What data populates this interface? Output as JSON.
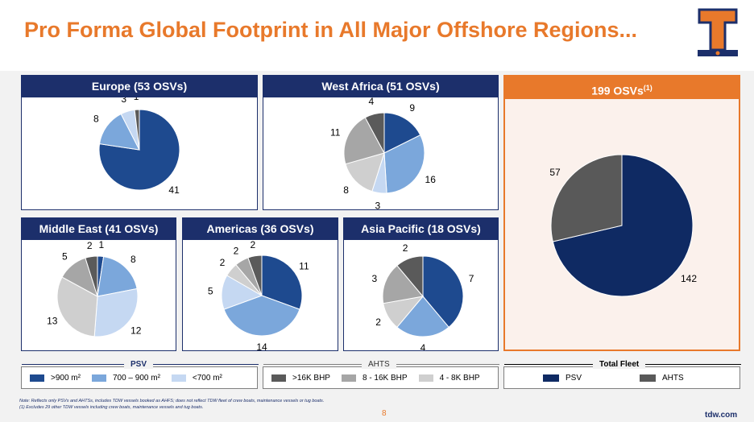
{
  "title": "Pro Forma Global Footprint in All Major Offshore Regions...",
  "colors": {
    "accent": "#e8792b",
    "navy": "#1c2f6b",
    "psv_gt900": "#1e4a8f",
    "psv_700_900": "#7ba7db",
    "psv_lt700": "#c5d8f2",
    "ahts_gt16k": "#5a5a5a",
    "ahts_8_16k": "#a6a6a6",
    "ahts_4_8k": "#cfcfcf",
    "fleet_psv": "#0f2a63",
    "fleet_ahts": "#595959"
  },
  "legend": {
    "psv": {
      "title": "PSV",
      "items": [
        ">900 m²",
        "700 – 900 m²",
        "<700 m²"
      ]
    },
    "ahts": {
      "title": "AHTS",
      "items": [
        ">16K BHP",
        "8 - 16K BHP",
        "4 - 8K BHP"
      ]
    },
    "total": {
      "title": "Total Fleet",
      "items": [
        "PSV",
        "AHTS"
      ]
    }
  },
  "total_header": "199 OSVs",
  "total_header_sup": "(1)",
  "notes": {
    "line1": "Note: Reflects only PSVs and AHTSs, includes TDW vessels booked as AHFS; does not reflect TDW fleet of crew boats, maintenance vessels or tug boats.",
    "line2": "(1)    Excludes 29 other TDW vessels including crew boats, maintenance vessels and tug boats."
  },
  "page_number": "8",
  "url": "tdw.com",
  "chart_data": [
    {
      "type": "pie",
      "title": "Europe (53 OSVs)",
      "series": [
        {
          "values": [
            41,
            8,
            3,
            1
          ],
          "labels": [
            "41",
            "8",
            "3",
            "1"
          ],
          "colors": [
            "#1e4a8f",
            "#7ba7db",
            "#c5d8f2",
            "#5a5a5a"
          ]
        }
      ]
    },
    {
      "type": "pie",
      "title": "West Africa (51 OSVs)",
      "series": [
        {
          "values": [
            9,
            16,
            3,
            8,
            11,
            4
          ],
          "labels": [
            "9",
            "16",
            "3",
            "8",
            "11",
            "4"
          ],
          "colors": [
            "#1e4a8f",
            "#7ba7db",
            "#c5d8f2",
            "#cfcfcf",
            "#a6a6a6",
            "#5a5a5a"
          ]
        }
      ]
    },
    {
      "type": "pie",
      "title": "Middle East (41 OSVs)",
      "series": [
        {
          "values": [
            1,
            8,
            12,
            13,
            5,
            2
          ],
          "labels": [
            "1",
            "8",
            "12",
            "13",
            "5",
            "2"
          ],
          "colors": [
            "#1e4a8f",
            "#7ba7db",
            "#c5d8f2",
            "#cfcfcf",
            "#a6a6a6",
            "#5a5a5a"
          ]
        }
      ]
    },
    {
      "type": "pie",
      "title": "Americas (36 OSVs)",
      "series": [
        {
          "values": [
            11,
            14,
            5,
            2,
            2,
            2
          ],
          "labels": [
            "11",
            "14",
            "5",
            "2",
            "2",
            "2"
          ],
          "colors": [
            "#1e4a8f",
            "#7ba7db",
            "#c5d8f2",
            "#cfcfcf",
            "#a6a6a6",
            "#5a5a5a"
          ]
        }
      ]
    },
    {
      "type": "pie",
      "title": "Asia Pacific (18 OSVs)",
      "series": [
        {
          "values": [
            7,
            4,
            2,
            3,
            2
          ],
          "labels": [
            "7",
            "4",
            "2",
            "3",
            "2"
          ],
          "colors": [
            "#1e4a8f",
            "#7ba7db",
            "#cfcfcf",
            "#a6a6a6",
            "#5a5a5a"
          ]
        }
      ]
    },
    {
      "type": "pie",
      "title": "199 OSVs",
      "series": [
        {
          "values": [
            142,
            57
          ],
          "labels": [
            "142",
            "57"
          ],
          "colors": [
            "#0f2a63",
            "#595959"
          ]
        }
      ]
    }
  ]
}
